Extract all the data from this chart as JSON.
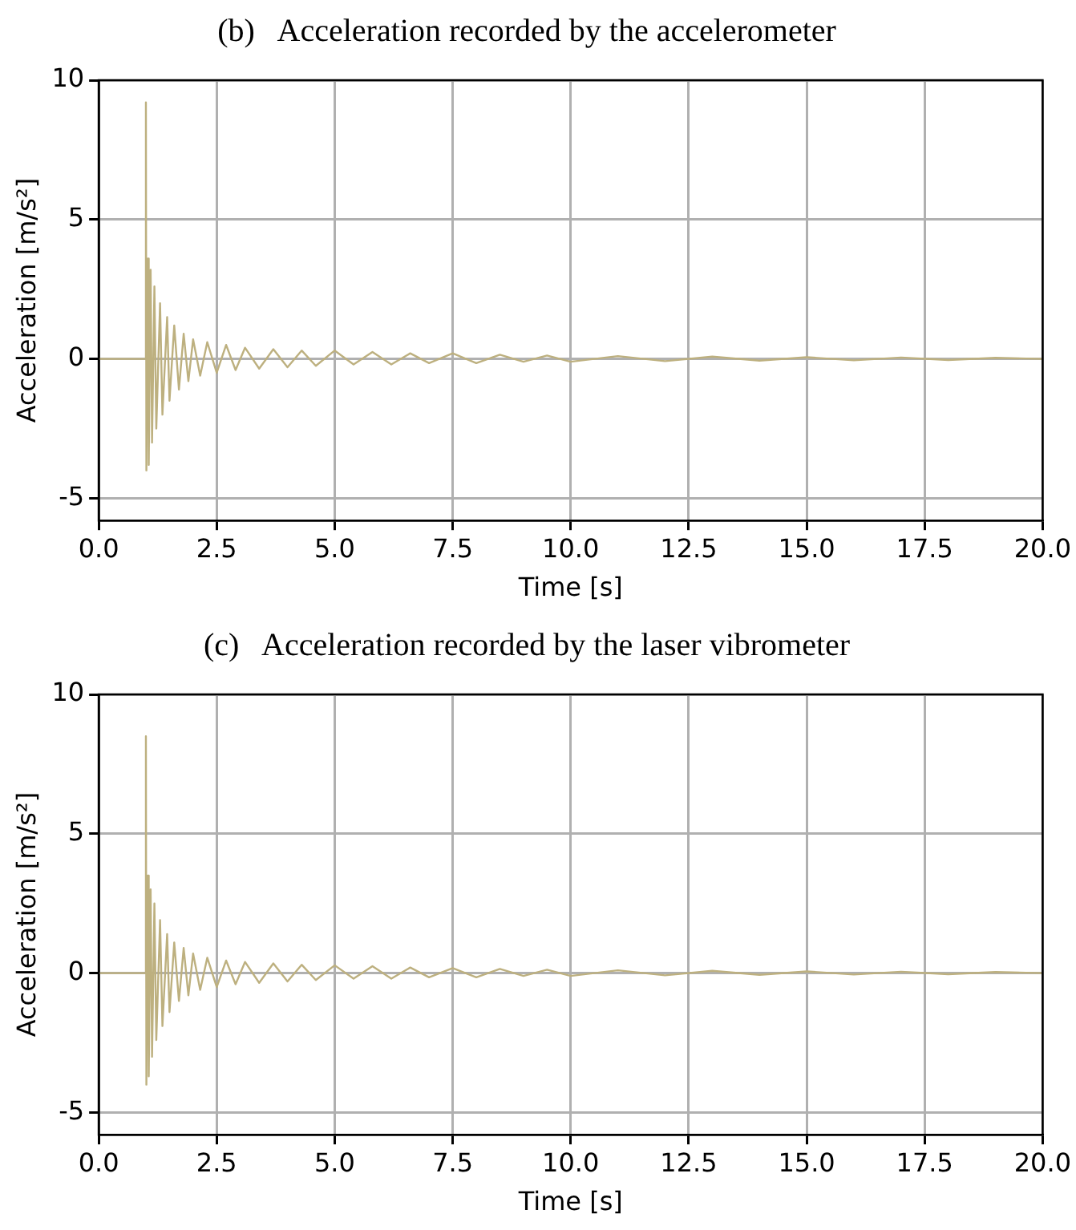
{
  "chart_data": [
    {
      "type": "line",
      "title": "(b)   Acceleration recorded by the accelerometer",
      "xlabel": "Time [s]",
      "ylabel": "Acceleration [m/s²]",
      "x": [
        0,
        0.98,
        1.0,
        1.01,
        1.04,
        1.06,
        1.1,
        1.13,
        1.18,
        1.22,
        1.3,
        1.35,
        1.45,
        1.5,
        1.6,
        1.7,
        1.8,
        1.9,
        2.0,
        2.15,
        2.3,
        2.5,
        2.7,
        2.9,
        3.1,
        3.4,
        3.7,
        4.0,
        4.3,
        4.6,
        5.0,
        5.4,
        5.8,
        6.2,
        6.6,
        7.0,
        7.5,
        8.0,
        8.5,
        9.0,
        9.5,
        10,
        11,
        12,
        13,
        14,
        15,
        16,
        17,
        18,
        19,
        20
      ],
      "series": [
        {
          "color": "#bdb07f",
          "values": [
            0,
            0,
            9.2,
            -4.0,
            3.6,
            -3.8,
            3.2,
            -3.0,
            2.6,
            -2.5,
            2.0,
            -2.0,
            1.5,
            -1.5,
            1.2,
            -1.1,
            0.9,
            -0.8,
            0.7,
            -0.6,
            0.6,
            -0.5,
            0.5,
            -0.4,
            0.4,
            -0.35,
            0.35,
            -0.3,
            0.3,
            -0.25,
            0.3,
            -0.2,
            0.25,
            -0.2,
            0.2,
            -0.15,
            0.2,
            -0.15,
            0.15,
            -0.1,
            0.12,
            -0.1,
            0.1,
            -0.08,
            0.08,
            -0.06,
            0.06,
            -0.05,
            0.05,
            -0.04,
            0.04,
            0
          ]
        }
      ],
      "xlim": [
        0,
        20
      ],
      "xticks": [
        {
          "value": 0,
          "label": "0.0"
        },
        2.5,
        {
          "value": 5,
          "label": "5.0"
        },
        7.5,
        {
          "value": 10,
          "label": "10.0"
        },
        12.5,
        {
          "value": 15,
          "label": "15.0"
        },
        17.5,
        {
          "value": 20,
          "label": "20.0"
        }
      ],
      "ylim": [
        -5.8,
        10
      ],
      "yticks": [
        -5,
        0,
        5,
        10
      ],
      "grid": true,
      "marker": "none",
      "line_style": "solid"
    },
    {
      "type": "line",
      "title": "(c)   Acceleration recorded by the laser vibrometer",
      "xlabel": "Time [s]",
      "ylabel": "Acceleration [m/s²]",
      "x": [
        0,
        0.98,
        1.0,
        1.01,
        1.04,
        1.06,
        1.1,
        1.13,
        1.18,
        1.22,
        1.3,
        1.35,
        1.45,
        1.5,
        1.6,
        1.7,
        1.8,
        1.9,
        2.0,
        2.15,
        2.3,
        2.5,
        2.7,
        2.9,
        3.1,
        3.4,
        3.7,
        4.0,
        4.3,
        4.6,
        5.0,
        5.4,
        5.8,
        6.2,
        6.6,
        7.0,
        7.5,
        8.0,
        8.5,
        9.0,
        9.5,
        10,
        11,
        12,
        13,
        14,
        15,
        16,
        17,
        18,
        19,
        20
      ],
      "series": [
        {
          "color": "#bdb07f",
          "values": [
            0,
            0,
            8.5,
            -4.0,
            3.5,
            -3.7,
            3.0,
            -3.0,
            2.5,
            -2.4,
            1.9,
            -1.9,
            1.4,
            -1.4,
            1.1,
            -1.0,
            0.9,
            -0.8,
            0.7,
            -0.6,
            0.55,
            -0.5,
            0.45,
            -0.4,
            0.4,
            -0.35,
            0.35,
            -0.3,
            0.3,
            -0.25,
            0.28,
            -0.2,
            0.25,
            -0.2,
            0.2,
            -0.15,
            0.18,
            -0.15,
            0.15,
            -0.1,
            0.12,
            -0.1,
            0.1,
            -0.08,
            0.08,
            -0.06,
            0.06,
            -0.05,
            0.05,
            -0.04,
            0.04,
            0
          ]
        }
      ],
      "xlim": [
        0,
        20
      ],
      "xticks": [
        {
          "value": 0,
          "label": "0.0"
        },
        2.5,
        {
          "value": 5,
          "label": "5.0"
        },
        7.5,
        {
          "value": 10,
          "label": "10.0"
        },
        12.5,
        {
          "value": 15,
          "label": "15.0"
        },
        17.5,
        {
          "value": 20,
          "label": "20.0"
        }
      ],
      "ylim": [
        -5.8,
        10
      ],
      "yticks": [
        -5,
        0,
        5,
        10
      ],
      "grid": true,
      "marker": "none",
      "line_style": "solid"
    }
  ]
}
